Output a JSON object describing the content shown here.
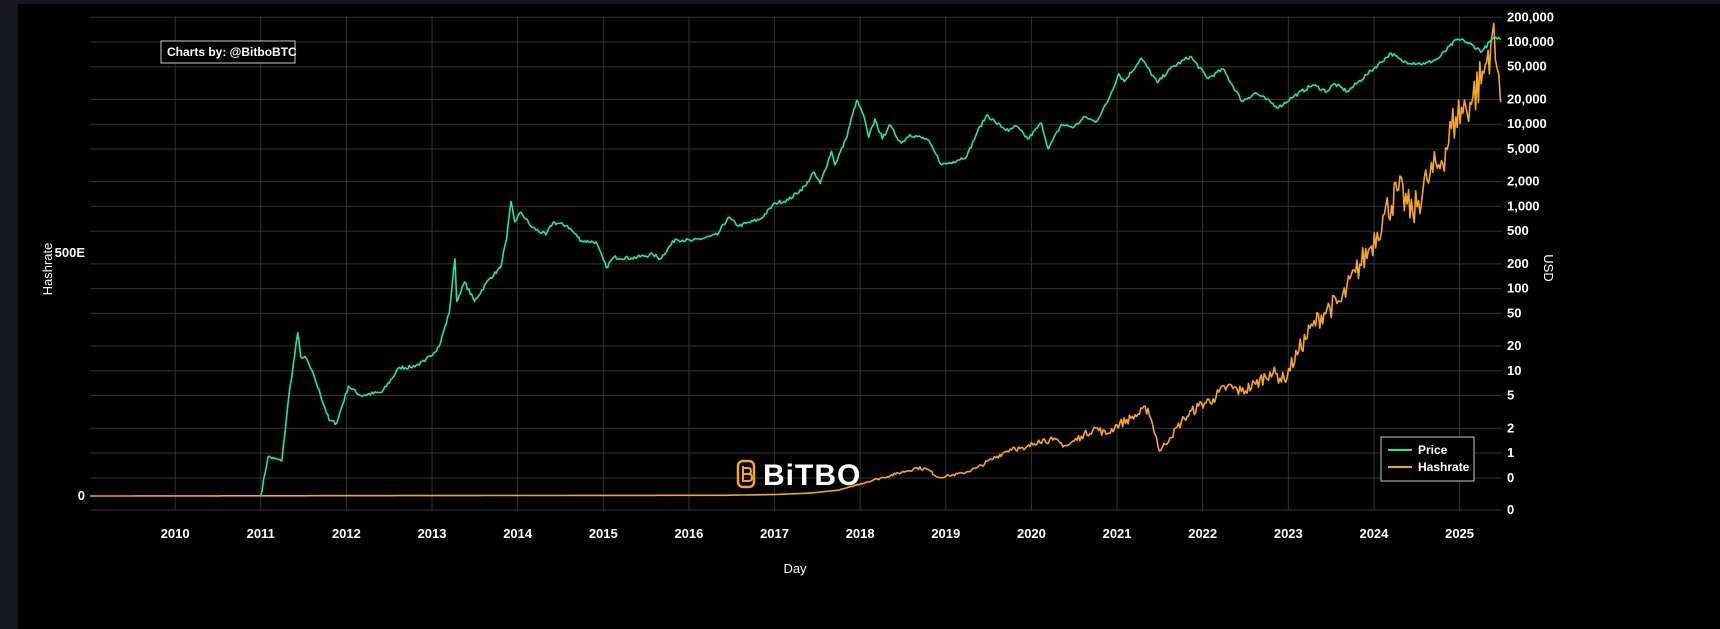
{
  "chart_data": {
    "type": "line",
    "credit": "Charts by: @BitboBTC",
    "watermark": "BiTBO",
    "xlabel": "Day",
    "ylabel_left": "Hashrate",
    "ylabel_right": "USD",
    "right_scale": "log",
    "x_ticks": [
      "2010",
      "2011",
      "2012",
      "2013",
      "2014",
      "2015",
      "2016",
      "2017",
      "2018",
      "2019",
      "2020",
      "2021",
      "2022",
      "2023",
      "2024",
      "2025"
    ],
    "xlim": [
      "2009-01-03",
      "2025-07-01"
    ],
    "left_ticks": [
      {
        "label": "0",
        "value": 0
      },
      {
        "label": "500E",
        "value": 500
      }
    ],
    "right_ticks": [
      "0",
      "0",
      "1",
      "2",
      "5",
      "10",
      "20",
      "50",
      "100",
      "200",
      "500",
      "1,000",
      "2,000",
      "5,000",
      "10,000",
      "20,000",
      "50,000",
      "100,000",
      "200,000"
    ],
    "grid": true,
    "legend_position": "bottom-right",
    "legend": [
      {
        "name": "Price",
        "color": "#1de9a0"
      },
      {
        "name": "Hashrate",
        "color": "#f5a623"
      }
    ],
    "series": [
      {
        "name": "Price",
        "color": "#1de9a0",
        "axis": "right",
        "points": [
          [
            "2011-01-01",
            0.3
          ],
          [
            "2011-02-01",
            0.9
          ],
          [
            "2011-03-01",
            0.85
          ],
          [
            "2011-04-01",
            0.8
          ],
          [
            "2011-05-01",
            5
          ],
          [
            "2011-06-08",
            29
          ],
          [
            "2011-06-20",
            15
          ],
          [
            "2011-07-15",
            14
          ],
          [
            "2011-08-20",
            8
          ],
          [
            "2011-10-20",
            2.5
          ],
          [
            "2011-11-20",
            2.3
          ],
          [
            "2012-01-10",
            6.5
          ],
          [
            "2012-03-01",
            5
          ],
          [
            "2012-06-01",
            5.5
          ],
          [
            "2012-08-15",
            11
          ],
          [
            "2012-10-01",
            11
          ],
          [
            "2012-12-01",
            13
          ],
          [
            "2013-02-01",
            20
          ],
          [
            "2013-03-15",
            50
          ],
          [
            "2013-04-09",
            230
          ],
          [
            "2013-04-16",
            70
          ],
          [
            "2013-05-20",
            120
          ],
          [
            "2013-07-01",
            70
          ],
          [
            "2013-09-01",
            130
          ],
          [
            "2013-10-20",
            180
          ],
          [
            "2013-11-15",
            400
          ],
          [
            "2013-12-04",
            1150
          ],
          [
            "2013-12-20",
            650
          ],
          [
            "2014-01-15",
            850
          ],
          [
            "2014-03-01",
            560
          ],
          [
            "2014-05-01",
            450
          ],
          [
            "2014-06-01",
            640
          ],
          [
            "2014-08-01",
            580
          ],
          [
            "2014-10-01",
            380
          ],
          [
            "2014-12-01",
            370
          ],
          [
            "2015-01-14",
            180
          ],
          [
            "2015-02-15",
            240
          ],
          [
            "2015-05-01",
            235
          ],
          [
            "2015-08-01",
            260
          ],
          [
            "2015-09-01",
            230
          ],
          [
            "2015-11-04",
            400
          ],
          [
            "2016-01-15",
            380
          ],
          [
            "2016-05-01",
            450
          ],
          [
            "2016-06-16",
            730
          ],
          [
            "2016-08-01",
            580
          ],
          [
            "2016-11-01",
            700
          ],
          [
            "2017-01-04",
            1100
          ],
          [
            "2017-03-01",
            1200
          ],
          [
            "2017-05-15",
            1800
          ],
          [
            "2017-06-15",
            2600
          ],
          [
            "2017-07-15",
            1900
          ],
          [
            "2017-09-01",
            4700
          ],
          [
            "2017-09-15",
            3200
          ],
          [
            "2017-11-01",
            6500
          ],
          [
            "2017-12-17",
            19500
          ],
          [
            "2018-01-15",
            13000
          ],
          [
            "2018-02-06",
            6900
          ],
          [
            "2018-03-05",
            11500
          ],
          [
            "2018-04-06",
            6600
          ],
          [
            "2018-05-05",
            9800
          ],
          [
            "2018-06-25",
            5900
          ],
          [
            "2018-08-01",
            7500
          ],
          [
            "2018-10-15",
            6500
          ],
          [
            "2018-11-20",
            4300
          ],
          [
            "2018-12-15",
            3200
          ],
          [
            "2019-02-01",
            3500
          ],
          [
            "2019-04-01",
            4100
          ],
          [
            "2019-05-15",
            8000
          ],
          [
            "2019-06-26",
            13000
          ],
          [
            "2019-08-01",
            10500
          ],
          [
            "2019-09-26",
            8200
          ],
          [
            "2019-10-27",
            9500
          ],
          [
            "2019-12-17",
            6600
          ],
          [
            "2020-02-13",
            10300
          ],
          [
            "2020-03-13",
            5000
          ],
          [
            "2020-05-08",
            9900
          ],
          [
            "2020-06-30",
            9200
          ],
          [
            "2020-08-17",
            12300
          ],
          [
            "2020-10-01",
            10600
          ],
          [
            "2020-11-20",
            18500
          ],
          [
            "2021-01-08",
            41000
          ],
          [
            "2021-02-01",
            33000
          ],
          [
            "2021-04-14",
            63500
          ],
          [
            "2021-06-22",
            32000
          ],
          [
            "2021-08-15",
            47000
          ],
          [
            "2021-11-09",
            67000
          ],
          [
            "2022-01-24",
            36000
          ],
          [
            "2022-03-28",
            47000
          ],
          [
            "2022-06-18",
            19000
          ],
          [
            "2022-08-15",
            24000
          ],
          [
            "2022-11-21",
            16000
          ],
          [
            "2023-01-15",
            21000
          ],
          [
            "2023-04-14",
            30000
          ],
          [
            "2023-06-15",
            25000
          ],
          [
            "2023-07-15",
            31000
          ],
          [
            "2023-09-11",
            25000
          ],
          [
            "2023-12-01",
            40000
          ],
          [
            "2024-03-14",
            73000
          ],
          [
            "2024-05-01",
            58000
          ],
          [
            "2024-08-05",
            54000
          ],
          [
            "2024-10-01",
            63000
          ],
          [
            "2024-12-17",
            106000
          ],
          [
            "2025-01-20",
            104000
          ],
          [
            "2025-04-07",
            77000
          ],
          [
            "2025-05-22",
            110000
          ],
          [
            "2025-06-10",
            109000
          ],
          [
            "2025-06-25",
            107000
          ]
        ]
      },
      {
        "name": "Hashrate",
        "color": "#f5a623",
        "axis": "left",
        "points": [
          [
            "2009-01-03",
            0
          ],
          [
            "2016-06-01",
            1.5
          ],
          [
            "2017-01-01",
            3
          ],
          [
            "2017-06-01",
            6
          ],
          [
            "2017-10-01",
            12
          ],
          [
            "2018-01-01",
            25
          ],
          [
            "2018-03-15",
            35
          ],
          [
            "2018-06-01",
            45
          ],
          [
            "2018-08-31",
            58
          ],
          [
            "2018-10-15",
            55
          ],
          [
            "2018-12-01",
            38
          ],
          [
            "2019-01-15",
            42
          ],
          [
            "2019-03-15",
            47
          ],
          [
            "2019-05-15",
            58
          ],
          [
            "2019-07-15",
            75
          ],
          [
            "2019-08-31",
            88
          ],
          [
            "2019-10-15",
            100
          ],
          [
            "2019-12-01",
            95
          ],
          [
            "2020-02-01",
            115
          ],
          [
            "2020-04-01",
            115
          ],
          [
            "2020-06-01",
            103
          ],
          [
            "2020-08-01",
            123
          ],
          [
            "2020-10-01",
            140
          ],
          [
            "2020-11-15",
            127
          ],
          [
            "2021-01-01",
            146
          ],
          [
            "2021-03-01",
            160
          ],
          [
            "2021-05-13",
            180
          ],
          [
            "2021-06-15",
            125
          ],
          [
            "2021-07-01",
            92
          ],
          [
            "2021-08-15",
            120
          ],
          [
            "2021-10-15",
            160
          ],
          [
            "2021-12-15",
            185
          ],
          [
            "2022-02-15",
            200
          ],
          [
            "2022-04-15",
            225
          ],
          [
            "2022-06-15",
            215
          ],
          [
            "2022-08-15",
            230
          ],
          [
            "2022-10-15",
            255
          ],
          [
            "2022-12-15",
            240
          ],
          [
            "2023-02-15",
            300
          ],
          [
            "2023-04-15",
            350
          ],
          [
            "2023-06-15",
            385
          ],
          [
            "2023-08-15",
            400
          ],
          [
            "2023-10-15",
            460
          ],
          [
            "2023-12-15",
            510
          ],
          [
            "2024-02-15",
            580
          ],
          [
            "2024-04-15",
            630
          ],
          [
            "2024-06-15",
            580
          ],
          [
            "2024-08-15",
            650
          ],
          [
            "2024-10-15",
            690
          ],
          [
            "2024-12-15",
            780
          ],
          [
            "2025-02-15",
            810
          ],
          [
            "2025-04-15",
            870
          ],
          [
            "2025-05-20",
            950
          ],
          [
            "2025-06-10",
            880
          ],
          [
            "2025-06-25",
            810
          ]
        ]
      }
    ]
  }
}
